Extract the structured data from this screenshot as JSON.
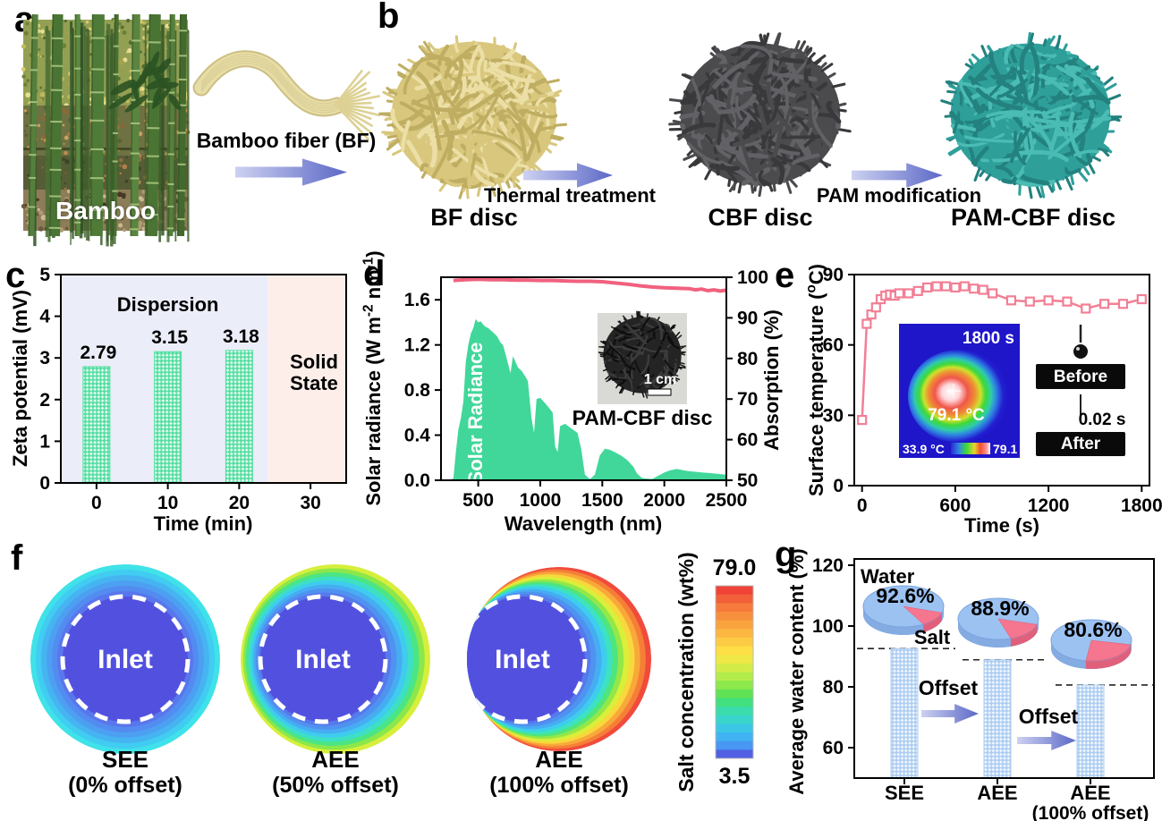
{
  "panels": {
    "a": {
      "letter": "a",
      "photo_caption": "Bamboo",
      "fiber_label": "Bamboo fiber (BF)"
    },
    "b": {
      "letter": "b",
      "discs": [
        {
          "label": "BF disc"
        },
        {
          "label": "CBF disc"
        },
        {
          "label": "PAM-CBF disc"
        }
      ],
      "arrow1": "Thermal treatment",
      "arrow2": "PAM modification"
    },
    "c": {
      "letter": "c"
    },
    "d": {
      "letter": "d"
    },
    "e": {
      "letter": "e"
    },
    "f": {
      "letter": "f"
    },
    "g": {
      "letter": "g"
    }
  },
  "colors": {
    "arrow_gradient": [
      "#cdd1f1",
      "#5b68c6"
    ],
    "disc_bf": {
      "base": "#d8c77d",
      "dark": "#bfae62",
      "light": "#ecdfa6"
    },
    "disc_cbf": {
      "base": "#4b4b4e",
      "dark": "#39393c",
      "light": "#626266"
    },
    "disc_pam": {
      "base": "#2f9f9a",
      "dark": "#23817e",
      "light": "#4abcb4"
    },
    "bar_green": "#55dfa2",
    "bar_blue": "#aecdf2",
    "line_pink": "#f06080",
    "temp_pink": "#f27f95",
    "solar_green": "#41d79a",
    "pie_blue": "#9cc2f2",
    "pie_pink": "#f5768e",
    "inlet_blue": "#5251df"
  },
  "chart_data": [
    {
      "id": "c",
      "type": "bar",
      "xlabel": "Time (min)",
      "ylabel": "Zeta potential (mV)",
      "categories": [
        0,
        10,
        20
      ],
      "values": [
        2.79,
        3.15,
        3.18
      ],
      "bar_labels": [
        "2.79",
        "3.15",
        "3.18"
      ],
      "xlim": [
        -5,
        35
      ],
      "ylim": [
        0,
        5
      ],
      "xticks": [
        "0",
        "10",
        "20",
        "30"
      ],
      "yticks": [
        "0",
        "1",
        "2",
        "3",
        "4",
        "5"
      ],
      "regions": [
        {
          "label": "Dispersion",
          "from": -5,
          "to": 24,
          "color": "#ebedf8"
        },
        {
          "label_line1": "Solid",
          "label_line2": "State",
          "from": 24,
          "to": 35,
          "color": "#fdeeea"
        }
      ],
      "bar_color": "#55dfa2",
      "grid": false,
      "legend": "none"
    },
    {
      "id": "d",
      "type": "area",
      "xlabel": "Wavelength (nm)",
      "ylabel_left_parts": [
        {
          "t": "Solar radiance (W m"
        },
        {
          "t": "-2",
          "sup": true
        },
        {
          "t": " nm"
        },
        {
          "t": "-1",
          "sup": true
        },
        {
          "t": ")"
        }
      ],
      "ylabel_right": "Absorption (%)",
      "xlim": [
        200,
        2500
      ],
      "ylim_left": [
        0,
        1.8
      ],
      "ylim_right": [
        50,
        100
      ],
      "xticks": [
        "500",
        "1000",
        "1500",
        "2000",
        "2500"
      ],
      "yticks_left": [
        "0.0",
        "0.4",
        "0.8",
        "1.2",
        "1.6"
      ],
      "yticks_right": [
        "50",
        "60",
        "70",
        "80",
        "90",
        "100"
      ],
      "series": [
        {
          "name": "Solar Radiance",
          "type": "area",
          "color": "#41d79a",
          "axis": "left",
          "x": [
            280,
            300,
            320,
            340,
            360,
            380,
            400,
            420,
            440,
            460,
            480,
            500,
            520,
            540,
            560,
            580,
            600,
            620,
            650,
            680,
            700,
            720,
            760,
            780,
            800,
            820,
            850,
            880,
            900,
            930,
            950,
            970,
            1000,
            1050,
            1100,
            1120,
            1140,
            1160,
            1200,
            1250,
            1300,
            1330,
            1360,
            1400,
            1440,
            1480,
            1520,
            1560,
            1600,
            1650,
            1700,
            1750,
            1780,
            1820,
            1900,
            1950,
            2000,
            2050,
            2100,
            2150,
            2200,
            2250,
            2300,
            2350,
            2400,
            2450,
            2500
          ],
          "y": [
            0,
            0.02,
            0.25,
            0.45,
            0.55,
            0.7,
            1.05,
            1.2,
            1.3,
            1.35,
            1.43,
            1.4,
            1.41,
            1.38,
            1.36,
            1.35,
            1.33,
            1.31,
            1.28,
            1.22,
            1.2,
            1.12,
            0.95,
            1.1,
            1.05,
            1.0,
            0.97,
            0.92,
            0.88,
            0.55,
            0.42,
            0.72,
            0.73,
            0.67,
            0.6,
            0.3,
            0.25,
            0.48,
            0.5,
            0.46,
            0.42,
            0.28,
            0.05,
            0.01,
            0.05,
            0.22,
            0.28,
            0.27,
            0.25,
            0.22,
            0.18,
            0.12,
            0.06,
            0.02,
            0.01,
            0.04,
            0.07,
            0.09,
            0.1,
            0.09,
            0.08,
            0.075,
            0.07,
            0.065,
            0.06,
            0.055,
            0.05
          ]
        },
        {
          "name": "Absorption",
          "type": "line",
          "color": "#f0617e",
          "axis": "right",
          "x": [
            300,
            400,
            500,
            600,
            700,
            800,
            900,
            1000,
            1100,
            1200,
            1300,
            1400,
            1500,
            1600,
            1700,
            1800,
            1900,
            2000,
            2100,
            2200,
            2250,
            2300,
            2350,
            2400,
            2450,
            2500
          ],
          "y": [
            99.2,
            99.4,
            99.5,
            99.4,
            99.4,
            99.3,
            99.3,
            99.2,
            99.2,
            99.1,
            99.0,
            99.0,
            98.9,
            98.6,
            98.3,
            97.9,
            97.6,
            97.4,
            97.3,
            97.2,
            96.9,
            97.1,
            96.7,
            96.9,
            96.6,
            96.8
          ]
        }
      ],
      "annotation": "Solar Radiance",
      "inset": {
        "label": "PAM-CBF disc",
        "scalebar": "1 cm"
      }
    },
    {
      "id": "e",
      "type": "line",
      "xlabel": "Time (s)",
      "ylabel_parts": [
        {
          "t": "Surface temperature ("
        },
        {
          "t": "o",
          "sup": true
        },
        {
          "t": "C)"
        }
      ],
      "xlim": [
        -50,
        1850
      ],
      "ylim": [
        0,
        90
      ],
      "xticks": [
        "0",
        "600",
        "1200",
        "1800"
      ],
      "yticks": [
        "0",
        "30",
        "60",
        "90"
      ],
      "series": [
        {
          "name": "Surface temperature",
          "color": "#f27f95",
          "marker": "open-square",
          "x": [
            0,
            30,
            60,
            90,
            120,
            150,
            180,
            210,
            240,
            300,
            360,
            420,
            480,
            540,
            600,
            660,
            720,
            780,
            840,
            960,
            1080,
            1200,
            1320,
            1440,
            1560,
            1680,
            1800
          ],
          "y": [
            28,
            69,
            73,
            76,
            79.5,
            81,
            81.5,
            81,
            82,
            82,
            83,
            84.5,
            85,
            85,
            84.5,
            85,
            84,
            83.5,
            82,
            79,
            78.5,
            79,
            78.5,
            75.5,
            77.5,
            77.5,
            79.5
          ]
        }
      ],
      "insets": {
        "thermal": {
          "time": "1800 s",
          "temp": "79.1 °C",
          "scale_min": "33.9 °C",
          "scale_max": "79.1 °C"
        },
        "droplet": {
          "before": "Before",
          "after": "After",
          "time": "0.02 s"
        }
      }
    },
    {
      "id": "f",
      "type": "contour",
      "inlet_label": "Inlet",
      "discs": [
        {
          "label": "SEE",
          "sublabel": "(0% offset)",
          "outer_r": 106,
          "inlet_r": 70,
          "inlet_dx": 0,
          "rings": [
            "#3fe2e8",
            "#41ccf2",
            "#47b4f2",
            "#4da0f1",
            "#538cf0",
            "#5976ec"
          ]
        },
        {
          "label": "AEE",
          "sublabel": "(50% offset)",
          "outer_r": 106,
          "inlet_r": 70,
          "inlet_dx": -14,
          "rings": [
            "#d7ef3c",
            "#8ce74a",
            "#4ce583",
            "#3de0c4",
            "#3fccee",
            "#47adf2",
            "#5092f0",
            "#5679ec"
          ]
        },
        {
          "label": "AEE",
          "sublabel": "(100% offset)",
          "outer_r": 103,
          "inlet_r": 70,
          "inlet_dx": -41,
          "rings": [
            "#f14b3c",
            "#f57f36",
            "#f9a83a",
            "#f8d83c",
            "#d9ef3a",
            "#93e748",
            "#4fe57c",
            "#3ce2c2",
            "#3ecdee",
            "#46adf2",
            "#4f92f0",
            "#557aec"
          ]
        }
      ],
      "colorbar": {
        "label": "Salt concentration (wt%)",
        "max": "79.0",
        "min": "3.5",
        "colors": [
          "#ef4337",
          "#f25f39",
          "#f57a3b",
          "#f78f3d",
          "#f9a33f",
          "#fbb741",
          "#fcca43",
          "#fedd45",
          "#f0e846",
          "#d3ec48",
          "#b3ec4a",
          "#8de84c",
          "#5fe253",
          "#42df7e",
          "#3bdcab",
          "#39d5cb",
          "#3cc7e5",
          "#41b2f2",
          "#4897f3",
          "#5160e2"
        ]
      }
    },
    {
      "id": "g",
      "type": "bar",
      "ylabel": "Average water content (%)",
      "categories": [
        "SEE",
        "AEE",
        "AEE"
      ],
      "category_sub": [
        "",
        "",
        "(100% offset)"
      ],
      "values": [
        92.6,
        88.9,
        80.6
      ],
      "ylim": [
        50,
        122
      ],
      "yticks": [
        "60",
        "80",
        "100",
        "120"
      ],
      "bar_color": "#aecdf2",
      "pies": [
        {
          "water_pct": 92.6,
          "label": "92.6%"
        },
        {
          "water_pct": 88.9,
          "label": "88.9%"
        },
        {
          "water_pct": 80.6,
          "label": "80.6%"
        }
      ],
      "pie_legend": {
        "water": "Water",
        "salt": "Salt"
      },
      "offset_label": "Offset"
    }
  ]
}
